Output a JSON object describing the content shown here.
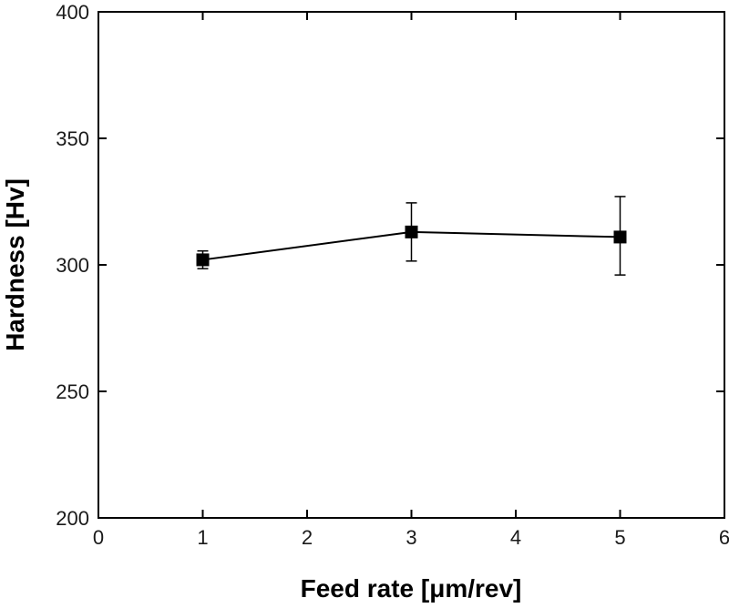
{
  "chart_data": {
    "type": "line",
    "title": "",
    "xlabel": "Feed rate [μm/rev]",
    "ylabel": "Hardness [Hv]",
    "xlim": [
      0,
      6
    ],
    "ylim": [
      200,
      400
    ],
    "xticks": [
      0,
      1,
      2,
      3,
      4,
      5,
      6
    ],
    "yticks": [
      200,
      250,
      300,
      350,
      400
    ],
    "xtick_labels": [
      "0",
      "1",
      "2",
      "3",
      "4",
      "5",
      "6"
    ],
    "ytick_labels": [
      "200",
      "250",
      "300",
      "350",
      "400"
    ],
    "grid": false,
    "legend": "none",
    "series": [
      {
        "name": "Hardness",
        "color": "#000000",
        "marker": "square",
        "x": [
          1,
          3,
          5
        ],
        "y": [
          302,
          313,
          311
        ],
        "err_low": [
          298.5,
          301.5,
          296
        ],
        "err_high": [
          305.5,
          324.5,
          327
        ]
      }
    ]
  }
}
